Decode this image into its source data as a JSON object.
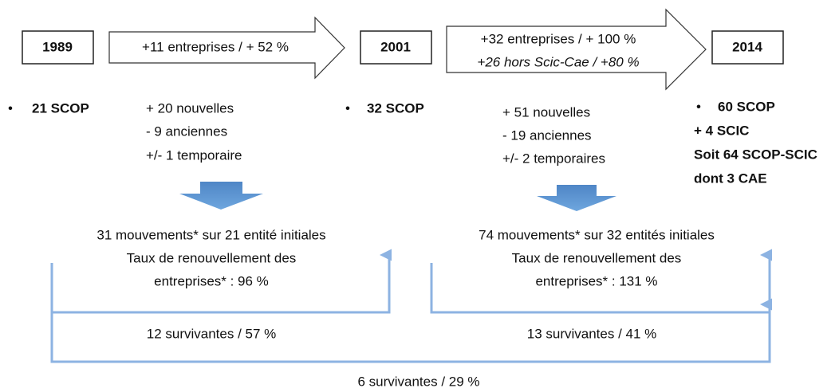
{
  "timeline": {
    "years": [
      "1989",
      "2001",
      "2014"
    ],
    "arrows": [
      {
        "lines": [
          "+11 entreprises / + 52 %"
        ]
      },
      {
        "lines": [
          "+32 entreprises / + 100 %",
          "+26 hors Scic-Cae / +80 %"
        ]
      }
    ]
  },
  "states": [
    {
      "bullet": "•",
      "lines": [
        "21 SCOP"
      ]
    },
    {
      "bullet": "•",
      "lines": [
        "32 SCOP"
      ]
    },
    {
      "bullet": "•",
      "lines": [
        "60 SCOP",
        "+ 4 SCIC",
        "Soit 64 SCOP-SCIC",
        "dont 3 CAE"
      ]
    }
  ],
  "changes": [
    [
      "+ 20 nouvelles",
      "- 9 anciennes",
      "+/- 1 temporaire"
    ],
    [
      "+ 51 nouvelles",
      "- 19 anciennes",
      "+/- 2 temporaires"
    ]
  ],
  "summaries": [
    [
      "31 mouvements* sur 21 entité initiales",
      "Taux de renouvellement des",
      "entreprises* : 96 %"
    ],
    [
      "74 mouvements* sur 32 entités initiales",
      "Taux de renouvellement des",
      "entreprises* : 131 %"
    ]
  ],
  "survivors": [
    "12 survivantes / 57 %",
    "13 survivantes / 41 %",
    "6 survivantes / 29 %"
  ]
}
